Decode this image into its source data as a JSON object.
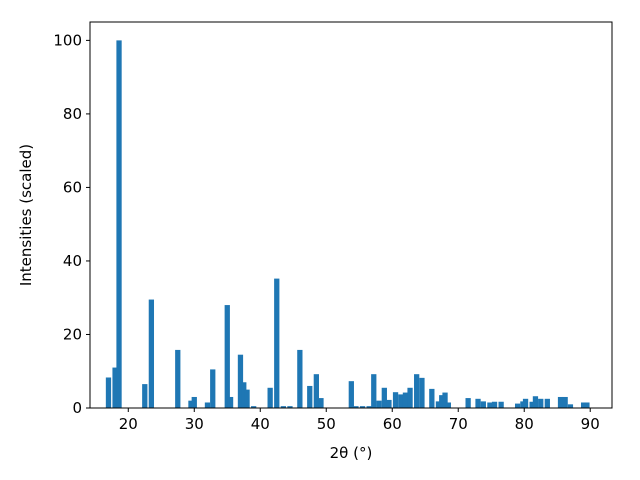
{
  "chart_data": {
    "type": "bar",
    "xlabel": "2θ (°)",
    "ylabel": "Intensities (scaled)",
    "x": [
      17.0,
      18.0,
      18.6,
      22.5,
      23.5,
      27.5,
      29.5,
      30.0,
      32.0,
      32.8,
      35.0,
      35.5,
      37.0,
      37.5,
      38.0,
      39.0,
      41.5,
      42.5,
      43.5,
      44.5,
      46.0,
      47.5,
      48.5,
      49.2,
      53.8,
      54.5,
      55.5,
      56.5,
      57.2,
      58.0,
      58.8,
      59.5,
      60.5,
      61.3,
      62.0,
      62.7,
      63.7,
      64.5,
      66.0,
      67.0,
      67.5,
      68.0,
      68.5,
      71.5,
      73.0,
      73.8,
      74.8,
      75.5,
      76.5,
      79.0,
      79.8,
      80.2,
      81.2,
      81.7,
      82.5,
      83.5,
      85.5,
      86.2,
      87.0,
      89.0,
      89.5
    ],
    "values": [
      8.3,
      11,
      100,
      6.5,
      29.5,
      15.8,
      2,
      3,
      1.5,
      10.5,
      28,
      3,
      14.5,
      7,
      5,
      0.5,
      5.5,
      35.2,
      0.5,
      0.5,
      15.8,
      6,
      9.2,
      2.7,
      7.3,
      0.5,
      0.5,
      0.5,
      9.2,
      2,
      5.5,
      2.2,
      4.3,
      3.7,
      4.2,
      5.5,
      9.2,
      8.2,
      5.2,
      1.8,
      3.5,
      4.2,
      1.5,
      2.7,
      2.5,
      1.8,
      1.5,
      1.7,
      1.7,
      1.2,
      1.8,
      2.5,
      1.7,
      3.2,
      2.5,
      2.5,
      3,
      3,
      1,
      1.5,
      1.5
    ],
    "color": "#1f77b4",
    "xlim": [
      14.2,
      93.3
    ],
    "ylim": [
      0,
      105
    ],
    "xticks": [
      20,
      30,
      40,
      50,
      60,
      70,
      80,
      90
    ],
    "yticks": [
      0,
      20,
      40,
      60,
      80,
      100
    ]
  }
}
